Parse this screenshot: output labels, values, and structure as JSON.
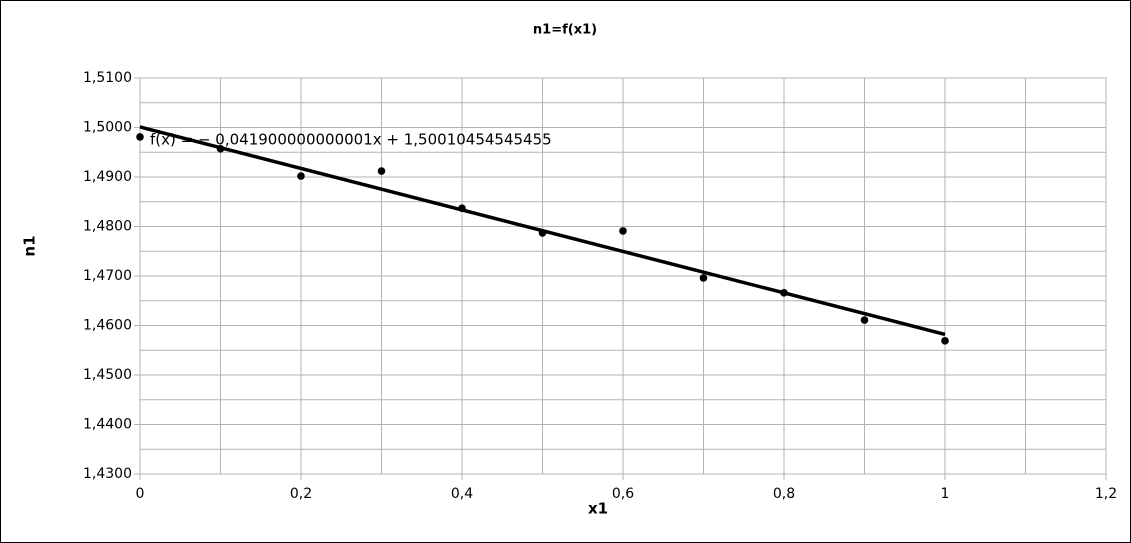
{
  "chart_data": {
    "type": "scatter",
    "title": "n1=f(x1)",
    "x_label": "x1",
    "y_label": "n1",
    "annotation": "f(x) = − 0,041900000000001x + 1,50010454545455",
    "series": [
      {
        "name": "n1",
        "color": "#000000",
        "x": [
          0,
          0.1,
          0.2,
          0.3,
          0.4,
          0.5,
          0.6,
          0.7,
          0.8,
          0.9,
          1
        ],
        "values": [
          1.4981,
          1.4957,
          1.4902,
          1.4912,
          1.4837,
          1.4787,
          1.4791,
          1.4696,
          1.4666,
          1.4611,
          1.4569
        ]
      }
    ],
    "trendline": {
      "color": "#000000",
      "x": [
        0,
        1
      ],
      "values": [
        1.50010454545455,
        1.45820454545455
      ]
    },
    "xlim": [
      0,
      1.2
    ],
    "ylim": [
      1.43,
      1.51
    ],
    "xticks": [
      0,
      {
        "value": 0.2,
        "label": "0,2"
      },
      {
        "value": 0.4,
        "label": "0,4"
      },
      {
        "value": 0.6,
        "label": "0,6"
      },
      {
        "value": 0.8,
        "label": "0,8"
      },
      1,
      {
        "value": 1.2,
        "label": "1,2"
      }
    ],
    "yticks": [
      {
        "value": 1.43,
        "label": "1,4300"
      },
      {
        "value": 1.44,
        "label": "1,4400"
      },
      {
        "value": 1.45,
        "label": "1,4500"
      },
      {
        "value": 1.46,
        "label": "1,4600"
      },
      {
        "value": 1.47,
        "label": "1,4700"
      },
      {
        "value": 1.48,
        "label": "1,4800"
      },
      {
        "value": 1.49,
        "label": "1,4900"
      },
      {
        "value": 1.5,
        "label": "1,5000"
      },
      {
        "value": 1.51,
        "label": "1,5100"
      }
    ],
    "xgrid": [
      0.1,
      0.3,
      0.5,
      0.7,
      0.9,
      1.1
    ],
    "ygrid": [
      1.435,
      1.445,
      1.455,
      1.465,
      1.475,
      1.485,
      1.495,
      1.505
    ],
    "grid": true,
    "grid_color": "#b3b3b3"
  }
}
